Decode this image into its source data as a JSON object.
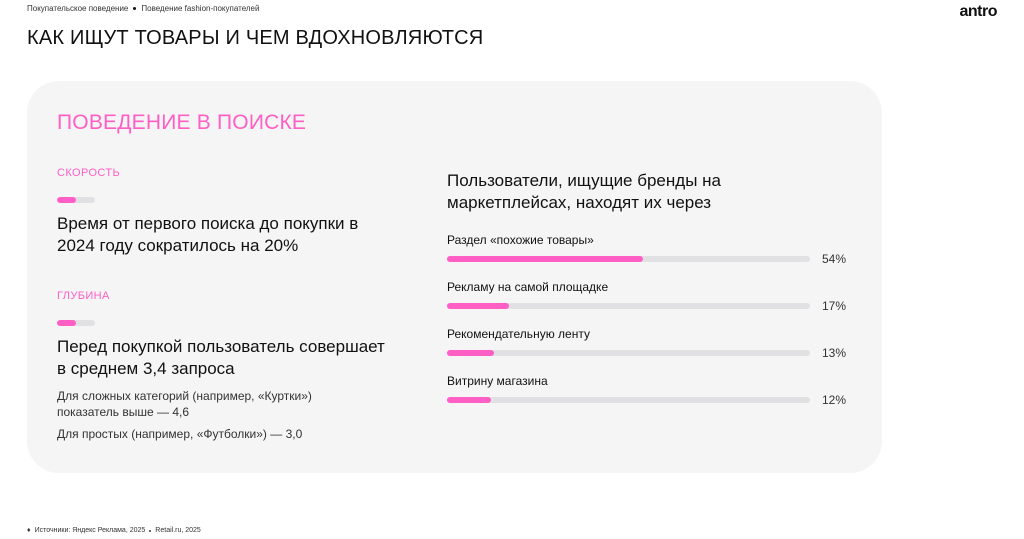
{
  "breadcrumb": [
    "Покупательское поведение",
    "Поведение fashion-покупателей"
  ],
  "logo": "antro",
  "page_title": "КАК ИЩУТ ТОВАРЫ И ЧЕМ ВДОХНОВЛЯЮТСЯ",
  "card": {
    "section_title": "ПОВЕДЕНИЕ В ПОИСКЕ",
    "speed": {
      "eyebrow": "СКОРОСТЬ",
      "indicator_fraction": 0.5,
      "stat": "Время от первого поиска до покупки в 2024 году сократилось на 20%"
    },
    "depth": {
      "eyebrow": "ГЛУБИНА",
      "indicator_fraction": 0.5,
      "stat": "Перед покупкой пользователь совершает в среднем 3,4 запроса",
      "note1": "Для сложных категорий (например, «Куртки») показатель выше — 4,6",
      "note2": "Для простых (например, «Футболки») — 3,0"
    }
  },
  "chart_data": {
    "type": "bar",
    "title": "Пользователи, ищущие бренды на маркетплейсах, находят их через",
    "categories": [
      "Раздел «похожие товары»",
      "Рекламу на самой площадке",
      "Рекомендательную ленту",
      "Витрину магазина"
    ],
    "values": [
      54,
      17,
      13,
      12
    ],
    "value_labels": [
      "54%",
      "17%",
      "13%",
      "12%"
    ],
    "xlim": [
      0,
      100
    ],
    "orientation": "horizontal",
    "color": "#ff5ec4",
    "track_color": "#e1e1e3"
  },
  "footnote": [
    "Источники: Яндекс Реклама, 2025",
    "Retail.ru, 2025"
  ],
  "colors": {
    "accent": "#ff5ec4",
    "card_bg": "#f5f5f6"
  }
}
